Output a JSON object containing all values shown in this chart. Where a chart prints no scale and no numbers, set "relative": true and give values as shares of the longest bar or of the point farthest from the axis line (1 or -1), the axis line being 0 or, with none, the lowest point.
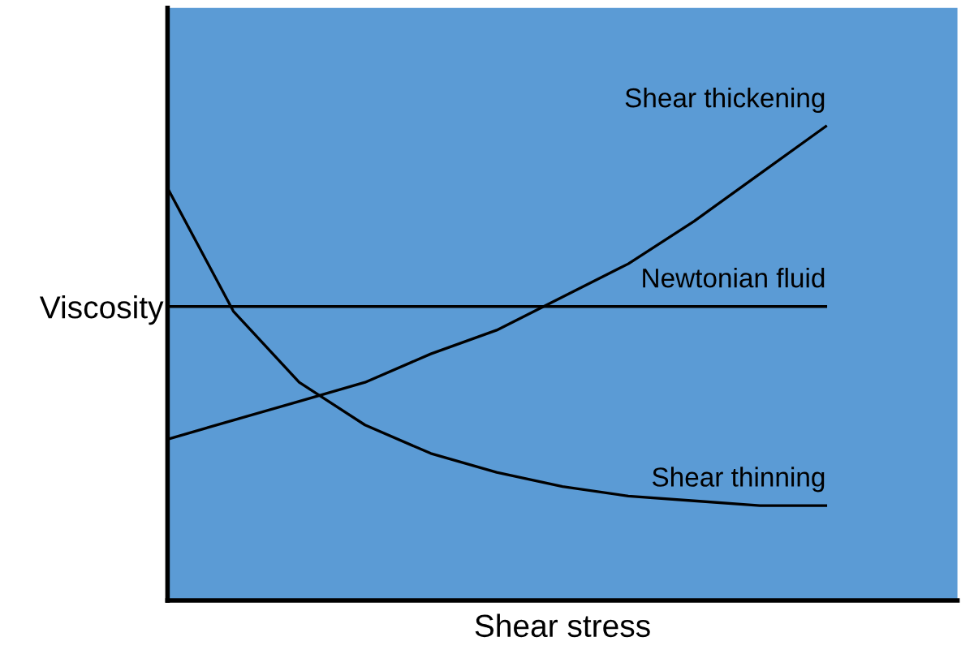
{
  "chart_data": {
    "type": "line",
    "relative": true,
    "xlabel": "Shear stress",
    "ylabel": "Viscosity",
    "tick_labels": false,
    "legend": false,
    "marker": "none",
    "line_style": "solid",
    "categories": [
      null,
      null,
      null,
      null,
      null,
      null,
      null,
      null,
      null,
      null,
      null,
      null,
      null
    ],
    "series": [
      {
        "name": "Shear thickening",
        "color": "#000000",
        "values": [
          0.34,
          0.38,
          0.42,
          0.46,
          0.52,
          0.57,
          0.64,
          0.71,
          0.8,
          0.9,
          1.0,
          null,
          null
        ]
      },
      {
        "name": "Newtonian fluid",
        "color": "#000000",
        "values": [
          0.62,
          0.62,
          0.62,
          0.62,
          0.62,
          0.62,
          0.62,
          0.62,
          0.62,
          0.62,
          0.62,
          null,
          null
        ]
      },
      {
        "name": "Shear thinning",
        "color": "#000000",
        "values": [
          0.87,
          0.61,
          0.46,
          0.37,
          0.31,
          0.27,
          0.24,
          0.22,
          0.21,
          0.2,
          0.2,
          null,
          null
        ]
      }
    ]
  }
}
